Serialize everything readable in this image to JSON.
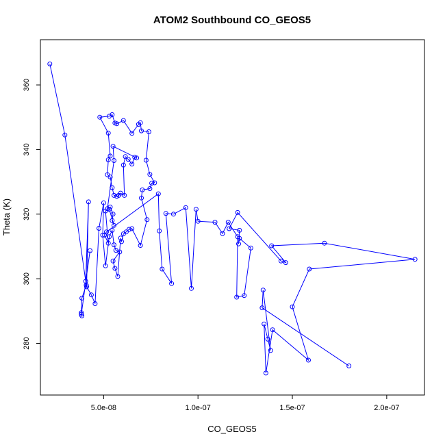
{
  "chart_data": {
    "type": "line",
    "title": "ATOM2 Southbound CO_GEOS5",
    "xlabel": "CO_GEOS5",
    "ylabel": "Theta (K)",
    "xlim": [
      1.65e-08,
      2.2e-07
    ],
    "ylim": [
      264,
      374
    ],
    "x_ticks": [
      5e-08,
      1e-07,
      1.5e-07,
      2e-07
    ],
    "x_tick_labels": [
      "5.0e-08",
      "1.0e-07",
      "1.5e-07",
      "2.0e-07"
    ],
    "y_ticks": [
      280,
      300,
      320,
      340,
      360
    ],
    "y_tick_labels": [
      "280",
      "300",
      "320",
      "340",
      "360"
    ],
    "grid": false,
    "series": [
      {
        "color": "#0000ff",
        "marker": "open-circle",
        "points": [
          [
            2.15e-08,
            366.5
          ],
          [
            2.95e-08,
            344.5
          ],
          [
            4.08e-08,
            298
          ],
          [
            3.85e-08,
            294
          ],
          [
            3.82e-08,
            289.5
          ],
          [
            3.85e-08,
            288.5
          ],
          [
            3.82e-08,
            289
          ],
          [
            4.28e-08,
            308.7
          ],
          [
            4.05e-08,
            299.2
          ],
          [
            4.2e-08,
            323.8
          ],
          [
            4.1e-08,
            297.5
          ],
          [
            4.35e-08,
            295
          ],
          [
            4.55e-08,
            292.3
          ],
          [
            4.75e-08,
            315.6
          ],
          [
            5e-08,
            323.5
          ],
          [
            4.95e-08,
            313.5
          ],
          [
            5.1e-08,
            304
          ],
          [
            5.3e-08,
            313
          ],
          [
            5.45e-08,
            315
          ],
          [
            5.55e-08,
            310.5
          ],
          [
            5.65e-08,
            308.8
          ],
          [
            5.85e-08,
            308.3
          ],
          [
            5.5e-08,
            305.5
          ],
          [
            5.6e-08,
            303.2
          ],
          [
            5.75e-08,
            300.7
          ],
          [
            5.9e-08,
            312.6
          ],
          [
            5.95e-08,
            311.5
          ],
          [
            6.05e-08,
            313.9
          ],
          [
            6.2e-08,
            314.5
          ],
          [
            6.35e-08,
            315.3
          ],
          [
            6.5e-08,
            315.5
          ],
          [
            6.95e-08,
            310.3
          ],
          [
            7.3e-08,
            318.3
          ],
          [
            7e-08,
            325
          ],
          [
            7.05e-08,
            327.5
          ],
          [
            7.45e-08,
            327.9
          ],
          [
            7.55e-08,
            329.6
          ],
          [
            7.7e-08,
            329.7
          ],
          [
            7.45e-08,
            332.3
          ],
          [
            7.25e-08,
            336.7
          ],
          [
            7.4e-08,
            345.5
          ],
          [
            7e-08,
            345.8
          ],
          [
            6.95e-08,
            348.3
          ],
          [
            6.85e-08,
            347.8
          ],
          [
            6.5e-08,
            345
          ],
          [
            6.05e-08,
            349
          ],
          [
            5.7e-08,
            348
          ],
          [
            5.6e-08,
            348.2
          ],
          [
            5.45e-08,
            350.8
          ],
          [
            5.3e-08,
            350.3
          ],
          [
            4.8e-08,
            350
          ],
          [
            5.25e-08,
            345.1
          ],
          [
            5.35e-08,
            338
          ],
          [
            5.25e-08,
            336.8
          ],
          [
            5.2e-08,
            332.2
          ],
          [
            5.35e-08,
            331.5
          ],
          [
            5.45e-08,
            328.2
          ],
          [
            5.55e-08,
            325.8
          ],
          [
            5.7e-08,
            325.5
          ],
          [
            5.8e-08,
            325.8
          ],
          [
            5.9e-08,
            326.5
          ],
          [
            6.1e-08,
            325.8
          ],
          [
            6.05e-08,
            335.2
          ],
          [
            6.15e-08,
            337.8
          ],
          [
            6.3e-08,
            337
          ],
          [
            6.5e-08,
            335.5
          ],
          [
            6.65e-08,
            337.6
          ],
          [
            6.75e-08,
            337.4
          ],
          [
            5.5e-08,
            341
          ],
          [
            5.55e-08,
            336.6
          ],
          [
            5.2e-08,
            321.7
          ],
          [
            5.35e-08,
            322.2
          ],
          [
            5.5e-08,
            320
          ],
          [
            5.45e-08,
            318
          ],
          [
            5.55e-08,
            316.5
          ],
          [
            5.3e-08,
            321.5
          ],
          [
            5.1e-08,
            321
          ],
          [
            5.25e-08,
            311
          ],
          [
            5.05e-08,
            313.5
          ],
          [
            5.15e-08,
            314.5
          ],
          [
            7.9e-08,
            326.3
          ],
          [
            7.95e-08,
            314.8
          ],
          [
            8.1e-08,
            303
          ],
          [
            8.6e-08,
            298.5
          ],
          [
            8.3e-08,
            320.2
          ],
          [
            8.7e-08,
            320
          ],
          [
            9.35e-08,
            322
          ],
          [
            9.65e-08,
            297
          ],
          [
            9.9e-08,
            321.5
          ],
          [
            1e-07,
            317.8
          ],
          [
            1.09e-07,
            317.5
          ],
          [
            1.13e-07,
            314
          ],
          [
            1.16e-07,
            317.5
          ],
          [
            1.21e-07,
            313
          ],
          [
            1.205e-07,
            294.3
          ],
          [
            1.245e-07,
            294.8
          ],
          [
            1.28e-07,
            309.5
          ],
          [
            1.22e-07,
            312.5
          ],
          [
            1.215e-07,
            310.8
          ],
          [
            1.22e-07,
            315
          ],
          [
            1.165e-07,
            315.5
          ],
          [
            1.21e-07,
            320.5
          ],
          [
            1.44e-07,
            305.5
          ],
          [
            1.465e-07,
            305
          ],
          [
            1.39e-07,
            310.2
          ],
          [
            1.67e-07,
            311
          ],
          [
            2.15e-07,
            306
          ],
          [
            1.59e-07,
            303
          ],
          [
            1.5e-07,
            291.3
          ],
          [
            1.585e-07,
            274.8
          ],
          [
            1.395e-07,
            284.2
          ],
          [
            1.36e-07,
            270.8
          ],
          [
            1.35e-07,
            286
          ],
          [
            1.37e-07,
            281.3
          ],
          [
            1.385e-07,
            277.8
          ],
          [
            1.345e-07,
            296.5
          ],
          [
            1.34e-07,
            291
          ],
          [
            1.8e-07,
            273
          ]
        ]
      }
    ]
  }
}
